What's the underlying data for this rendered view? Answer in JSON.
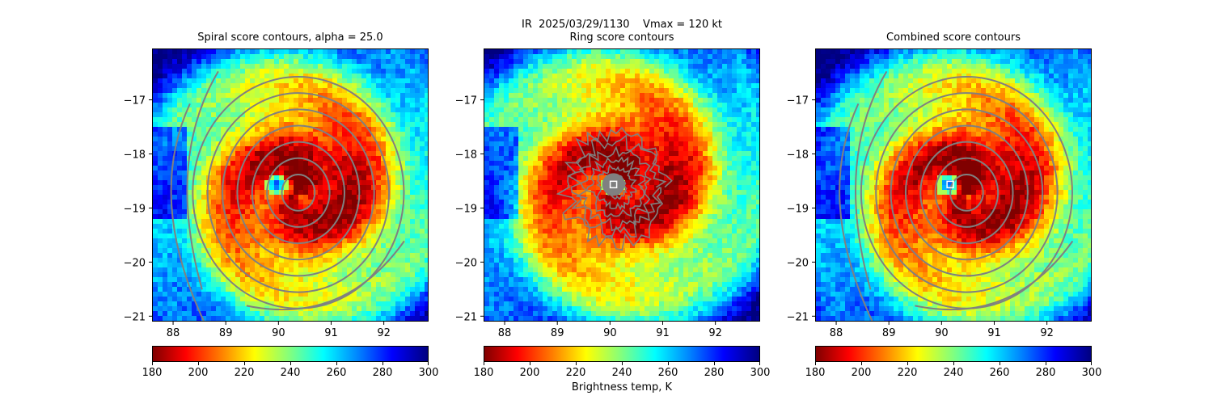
{
  "suptitle_line1": "IR  2025/03/29/1130    Vmax = 120 kt",
  "suptitle_line2": "Ring score contours",
  "colorbar_label": "Brightness temp, K",
  "colormap": [
    "#800000",
    "#ff0000",
    "#ff8000",
    "#ffff00",
    "#80ff80",
    "#00ffff",
    "#0080ff",
    "#0000ff",
    "#000080"
  ],
  "contour_color": "#808080",
  "chart_data": [
    {
      "type": "heatmap",
      "title": "Spiral score contours, alpha = 25.0",
      "x_ticks": [
        "88",
        "89",
        "90",
        "91",
        "92"
      ],
      "y_ticks": [
        "−17",
        "−18",
        "−19",
        "−20",
        "−21"
      ],
      "xlim": [
        87.6,
        92.85
      ],
      "ylim": [
        -21.1,
        -16.05
      ],
      "colorbar_ticks": [
        "180",
        "200",
        "220",
        "240",
        "260",
        "280",
        "300"
      ],
      "colorbar_range": [
        180,
        300
      ],
      "eye_center": [
        89.95,
        -18.55
      ],
      "storm_center": [
        90.3,
        -18.7
      ],
      "contour_overlay": "spiral",
      "marker": null
    },
    {
      "type": "heatmap",
      "title": "",
      "x_ticks": [
        "88",
        "89",
        "90",
        "91",
        "92"
      ],
      "y_ticks": [
        "−17",
        "−18",
        "−19",
        "−20",
        "−21"
      ],
      "xlim": [
        87.6,
        92.85
      ],
      "ylim": [
        -21.1,
        -16.05
      ],
      "colorbar_ticks": [
        "180",
        "200",
        "220",
        "240",
        "260",
        "280",
        "300"
      ],
      "colorbar_range": [
        180,
        300
      ],
      "eye_center": [
        90.05,
        -18.55
      ],
      "storm_center": [
        90.1,
        -18.6
      ],
      "contour_overlay": "ring",
      "marker": [
        90.05,
        -18.55
      ]
    },
    {
      "type": "heatmap",
      "title": "Combined score contours",
      "x_ticks": [
        "88",
        "89",
        "90",
        "91",
        "92"
      ],
      "y_ticks": [
        "−17",
        "−18",
        "−19",
        "−20",
        "−21"
      ],
      "xlim": [
        87.6,
        92.85
      ],
      "ylim": [
        -21.1,
        -16.05
      ],
      "colorbar_ticks": [
        "180",
        "200",
        "220",
        "240",
        "260",
        "280",
        "300"
      ],
      "colorbar_range": [
        180,
        300
      ],
      "eye_center": [
        90.1,
        -18.55
      ],
      "storm_center": [
        90.4,
        -18.7
      ],
      "contour_overlay": "spiral",
      "marker": [
        90.15,
        -18.55
      ]
    }
  ]
}
